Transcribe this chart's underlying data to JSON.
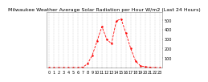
{
  "title": "Milwaukee Weather Average Solar Radiation per Hour W/m2 (Last 24 Hours)",
  "line_color": "#ff0000",
  "bg_color": "#ffffff",
  "grid_color": "#bbbbbb",
  "hours": [
    0,
    1,
    2,
    3,
    4,
    5,
    6,
    7,
    8,
    9,
    10,
    11,
    12,
    13,
    14,
    15,
    16,
    17,
    18,
    19,
    20,
    21,
    22,
    23
  ],
  "values": [
    0,
    0,
    0,
    0,
    0,
    0,
    0,
    5,
    40,
    130,
    280,
    430,
    300,
    250,
    490,
    510,
    360,
    200,
    70,
    20,
    10,
    5,
    0,
    0
  ],
  "ylim": [
    0,
    580
  ],
  "yticks": [
    100,
    200,
    300,
    400,
    500
  ],
  "title_fontsize": 4.5,
  "tick_fontsize": 3.5
}
